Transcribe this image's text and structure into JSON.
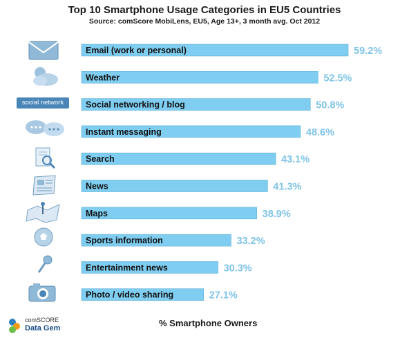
{
  "chart_data": {
    "type": "bar",
    "orientation": "horizontal",
    "title": "Top 10 Smartphone Usage Categories in EU5 Countries",
    "subtitle": "Source: comScore MobiLens,  EU5, Age 13+, 3 month avg. Oct 2012",
    "xlabel": "% Smartphone Owners",
    "categories": [
      "Email (work or personal)",
      "Weather",
      "Social networking / blog",
      "Instant messaging",
      "Search",
      "News",
      "Maps",
      "Sports information",
      "Entertainment news",
      "Photo / video sharing"
    ],
    "values": [
      59.2,
      52.5,
      50.8,
      48.6,
      43.1,
      41.3,
      38.9,
      33.2,
      30.3,
      27.1
    ],
    "value_labels": [
      "59.2%",
      "52.5%",
      "50.8%",
      "48.6%",
      "43.1%",
      "41.3%",
      "38.9%",
      "33.2%",
      "30.3%",
      "27.1%"
    ],
    "xlim": [
      0,
      59.2
    ],
    "bar_color": "#7fcdf0",
    "label_color": "#7fc4e8",
    "grid": false
  },
  "icons": [
    "email-icon",
    "weather-icon",
    "social-network-icon",
    "chat-icon",
    "search-icon",
    "news-icon",
    "map-icon",
    "soccer-ball-icon",
    "microphone-icon",
    "camera-icon"
  ],
  "social_icon_text": "social network",
  "logo": {
    "line1": "comSCORE",
    "line2": "Data Gem"
  }
}
